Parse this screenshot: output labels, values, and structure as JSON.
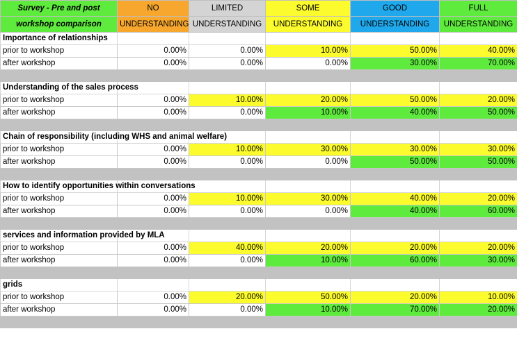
{
  "header": {
    "title_line1": "Survey  - Pre and post",
    "title_line2": "workshop comparison",
    "columns": [
      {
        "line1": "NO",
        "line2": "UNDERSTANDING",
        "color": "#f7a72e"
      },
      {
        "line1": "LIMITED",
        "line2": "UNDERSTANDING",
        "color": "#d4d4d4"
      },
      {
        "line1": "SOME",
        "line2": "UNDERSTANDING",
        "color": "#fbfb2e"
      },
      {
        "line1": "GOOD",
        "line2": "UNDERSTANDING",
        "color": "#1fa9ec"
      },
      {
        "line1": "FULL",
        "line2": "UNDERSTANDING",
        "color": "#5fea3e"
      }
    ]
  },
  "colors": {
    "green": "#5fea3e",
    "yellow": "#fbfb2e",
    "separator": "#c2c2c2",
    "white": "#ffffff"
  },
  "sections": [
    {
      "title": "Importance of relationships",
      "rows": [
        {
          "label": "prior to workshop",
          "values": [
            "0.00%",
            "0.00%",
            "10.00%",
            "50.00%",
            "40.00%"
          ],
          "fills": [
            "w",
            "w",
            "y",
            "y",
            "y"
          ]
        },
        {
          "label": "after workshop",
          "values": [
            "0.00%",
            "0.00%",
            "0.00%",
            "30.00%",
            "70.00%"
          ],
          "fills": [
            "w",
            "w",
            "w",
            "g",
            "g"
          ]
        }
      ]
    },
    {
      "title": "Understanding of the sales process",
      "rows": [
        {
          "label": "prior to workshop",
          "values": [
            "0.00%",
            "10.00%",
            "20.00%",
            "50.00%",
            "20.00%"
          ],
          "fills": [
            "w",
            "y",
            "y",
            "y",
            "y"
          ]
        },
        {
          "label": "after workshop",
          "values": [
            "0.00%",
            "0.00%",
            "10.00%",
            "40.00%",
            "50.00%"
          ],
          "fills": [
            "w",
            "w",
            "g",
            "g",
            "g"
          ]
        }
      ]
    },
    {
      "title": "Chain of responsibility (including WHS and animal welfare)",
      "rows": [
        {
          "label": "prior to workshop",
          "values": [
            "0.00%",
            "10.00%",
            "30.00%",
            "30.00%",
            "30.00%"
          ],
          "fills": [
            "w",
            "y",
            "y",
            "y",
            "y"
          ]
        },
        {
          "label": "after workshop",
          "values": [
            "0.00%",
            "0.00%",
            "0.00%",
            "50.00%",
            "50.00%"
          ],
          "fills": [
            "w",
            "w",
            "w",
            "g",
            "g"
          ]
        }
      ]
    },
    {
      "title": "How to identify opportunities within conversations",
      "rows": [
        {
          "label": "prior to workshop",
          "values": [
            "0.00%",
            "10.00%",
            "30.00%",
            "40.00%",
            "20.00%"
          ],
          "fills": [
            "w",
            "y",
            "y",
            "y",
            "y"
          ]
        },
        {
          "label": "after workshop",
          "values": [
            "0.00%",
            "0.00%",
            "0.00%",
            "40.00%",
            "60.00%"
          ],
          "fills": [
            "w",
            "w",
            "w",
            "g",
            "g"
          ]
        }
      ]
    },
    {
      "title": "services and information provided by MLA",
      "rows": [
        {
          "label": "prior to workshop",
          "values": [
            "0.00%",
            "40.00%",
            "20.00%",
            "20.00%",
            "20.00%"
          ],
          "fills": [
            "w",
            "y",
            "y",
            "y",
            "y"
          ]
        },
        {
          "label": "after workshop",
          "values": [
            "0.00%",
            "0.00%",
            "10.00%",
            "60.00%",
            "30.00%"
          ],
          "fills": [
            "w",
            "w",
            "g",
            "g",
            "g"
          ]
        }
      ]
    },
    {
      "title": "grids",
      "rows": [
        {
          "label": "prior to workshop",
          "values": [
            "0.00%",
            "20.00%",
            "50.00%",
            "20.00%",
            "10.00%"
          ],
          "fills": [
            "w",
            "y",
            "y",
            "y",
            "y"
          ]
        },
        {
          "label": "after workshop",
          "values": [
            "0.00%",
            "0.00%",
            "10.00%",
            "70.00%",
            "20.00%"
          ],
          "fills": [
            "w",
            "w",
            "g",
            "g",
            "g"
          ]
        }
      ]
    }
  ]
}
